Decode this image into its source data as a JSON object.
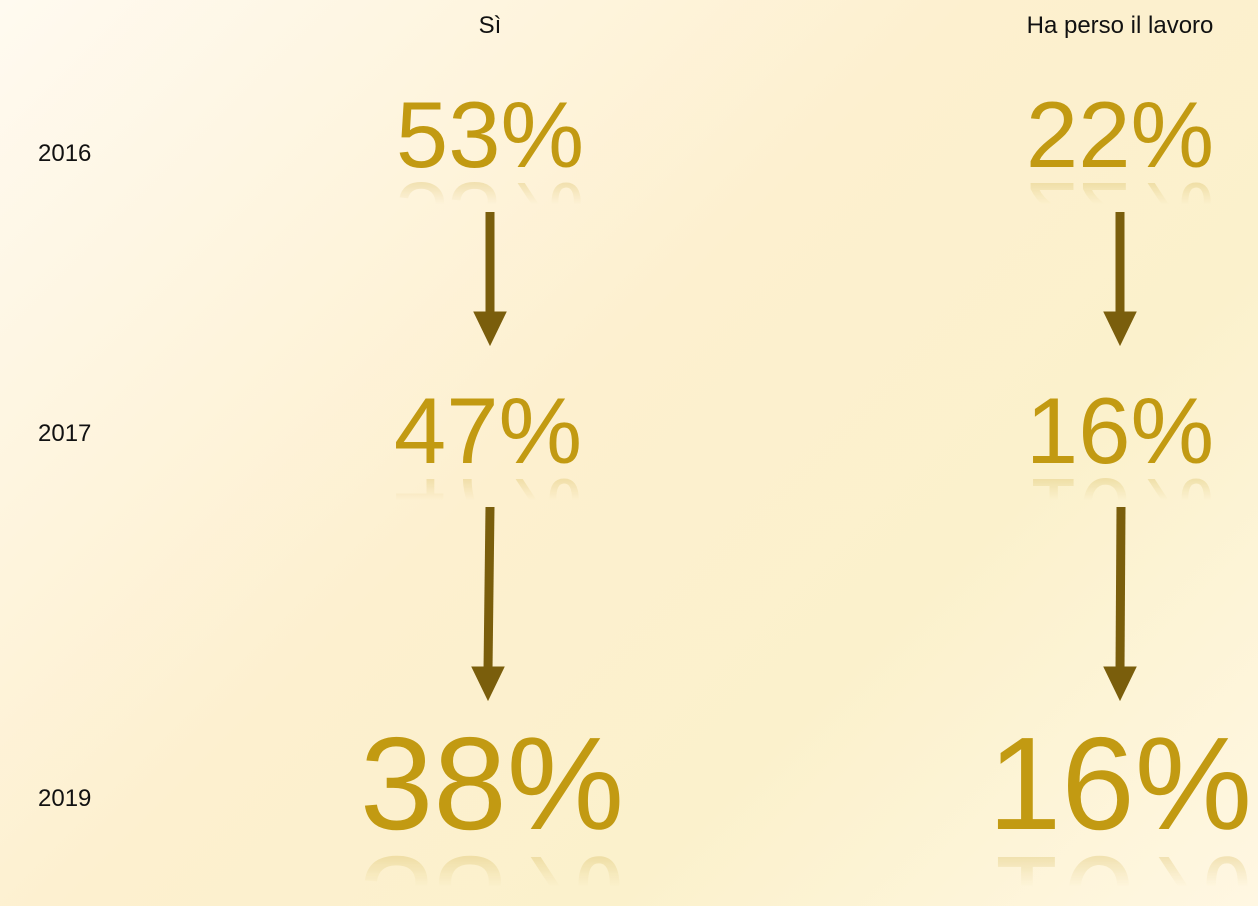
{
  "years": [
    "2016",
    "2017",
    "2019"
  ],
  "columns": [
    {
      "header": "Sì",
      "values": [
        "53%",
        "47%",
        "38%"
      ]
    },
    {
      "header": "Ha perso il lavoro",
      "values": [
        "22%",
        "16%",
        "16%"
      ]
    }
  ]
}
